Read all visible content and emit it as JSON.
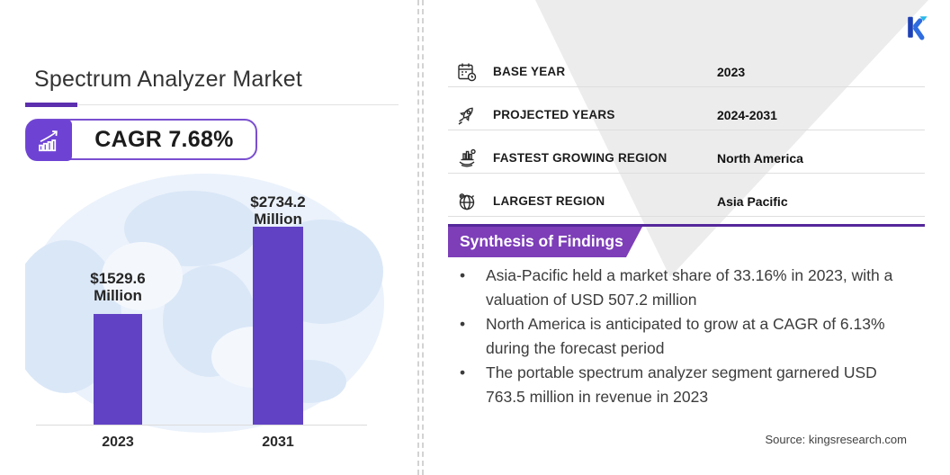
{
  "header": {
    "title": "Spectrum Analyzer Market",
    "cagr_badge": "CAGR 7.68%"
  },
  "chart_data": {
    "type": "bar",
    "categories": [
      "2023",
      "2031"
    ],
    "values": [
      1529.6,
      2734.2
    ],
    "unit": "USD Million",
    "bar_labels": [
      [
        "$1529.6",
        "Million"
      ],
      [
        "$2734.2",
        "Million"
      ]
    ],
    "bar_color": "#6142c4",
    "ylim": [
      0,
      2734.2
    ],
    "grid": "off",
    "legend": "none"
  },
  "facts": {
    "rows": [
      {
        "icon": "calendar-icon",
        "label": "BASE YEAR",
        "value": "2023"
      },
      {
        "icon": "rocket-icon",
        "label": "PROJECTED YEARS",
        "value": "2024-2031"
      },
      {
        "icon": "growth-chart-icon",
        "label": "FASTEST GROWING REGION",
        "value": "North America"
      },
      {
        "icon": "globe-icon",
        "label": "LARGEST REGION",
        "value": "Asia Pacific"
      }
    ]
  },
  "findings": {
    "heading": "Synthesis of Findings",
    "bullets": [
      "Asia-Pacific held a market share of 33.16% in 2023, with a valuation of USD 507.2 million",
      "North America is anticipated to grow at a CAGR of 6.13% during the forecast period",
      "The portable spectrum analyzer segment garnered USD 763.5 million in revenue in 2023"
    ]
  },
  "footer": {
    "source": "Source: kingsresearch.com"
  },
  "colors": {
    "bar_purple": "#6142c4",
    "badge_purple": "#6e43d4",
    "banner_purple": "#7d3eb8",
    "rule_purple": "#55279b",
    "map_blue": "#d7e5f7",
    "triangle_gray": "#ececec"
  }
}
